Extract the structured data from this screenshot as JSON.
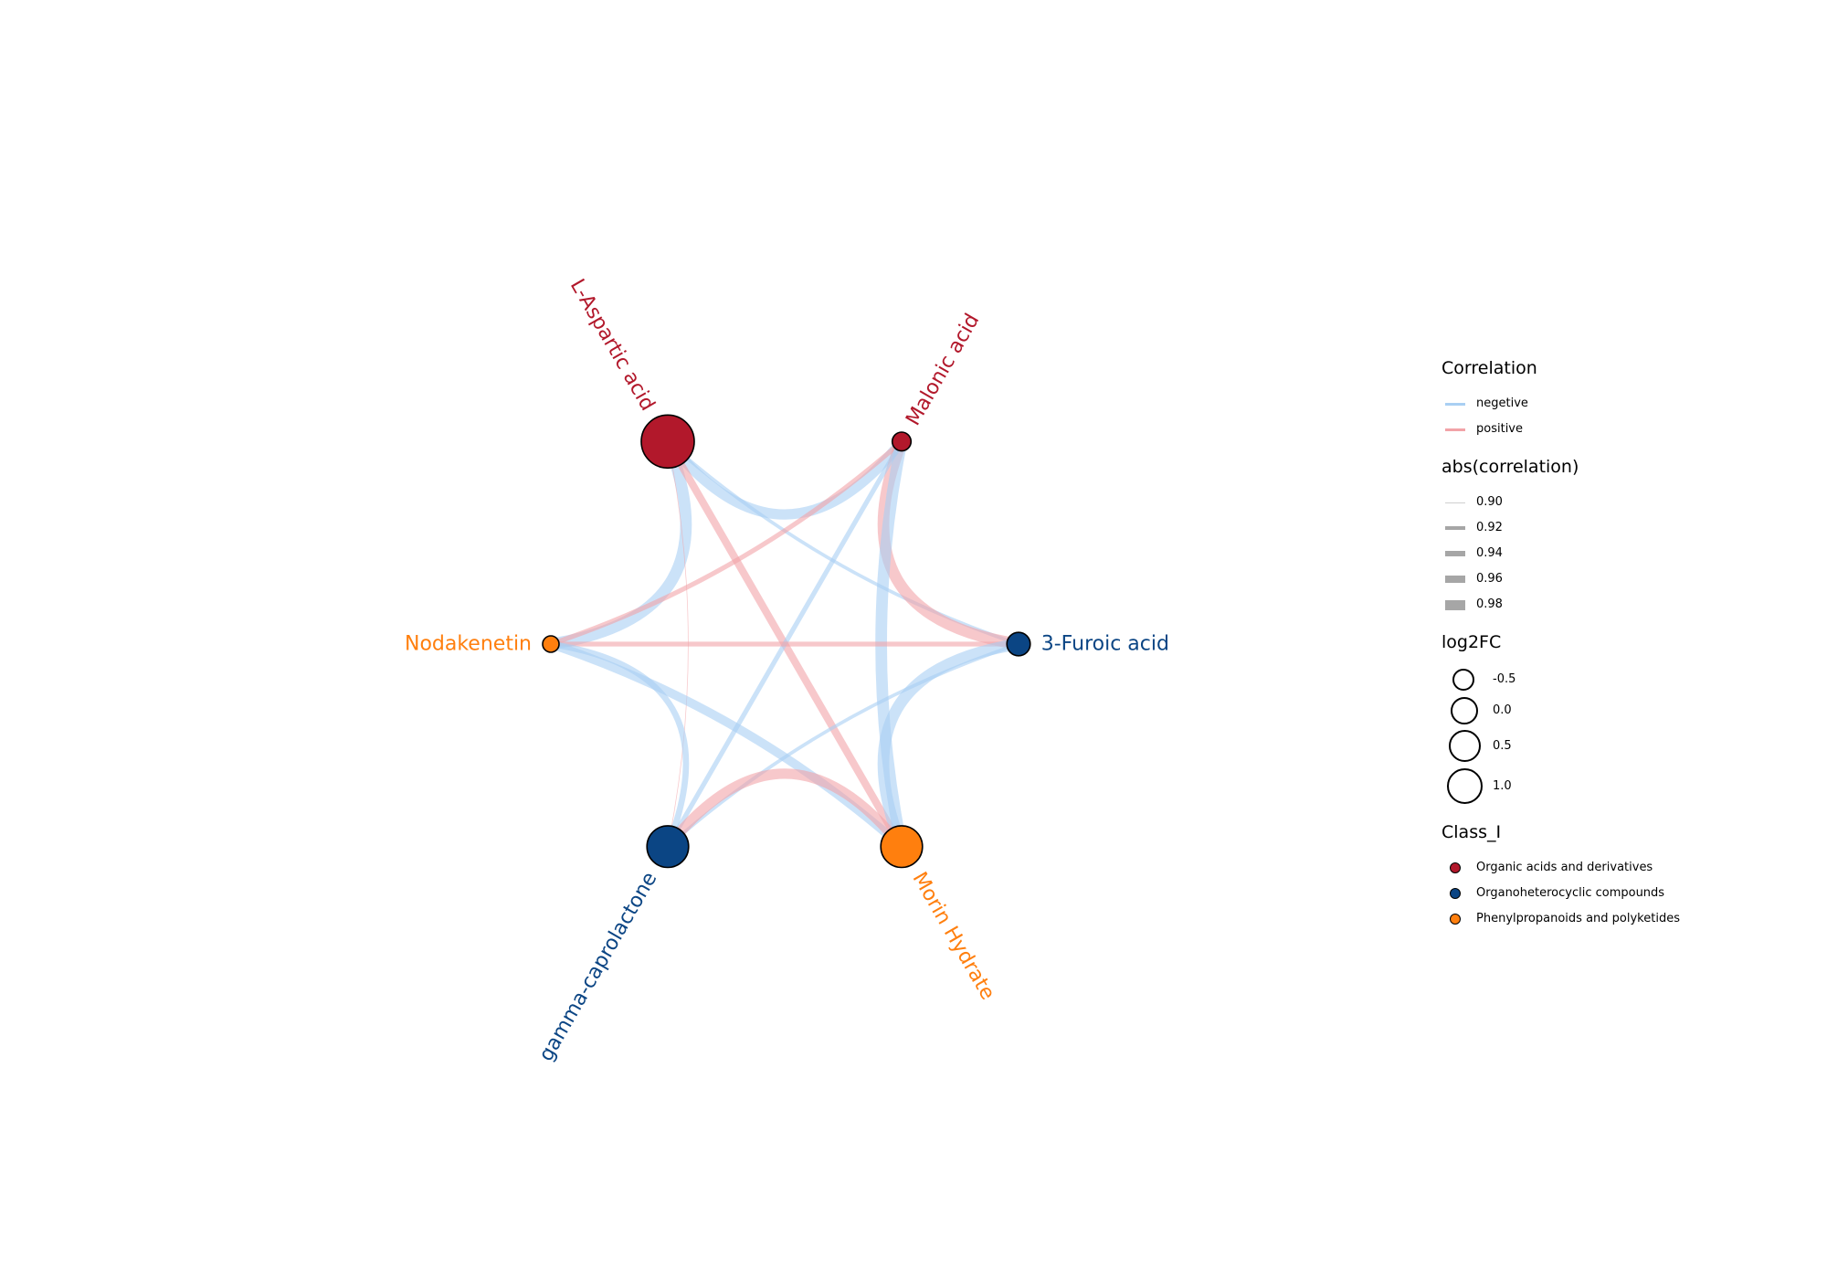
{
  "chart_data": {
    "type": "network",
    "nodes": [
      {
        "id": "L-Aspartic acid",
        "class": "Organic acids and derivatives",
        "log2FC": 1.0
      },
      {
        "id": "Malonic acid",
        "class": "Organic acids and derivatives",
        "log2FC": -0.5
      },
      {
        "id": "3-Furoic acid",
        "class": "Organoheterocyclic compounds",
        "log2FC": -0.3
      },
      {
        "id": "Morin Hydrate",
        "class": "Phenylpropanoids and polyketides",
        "log2FC": 0.5
      },
      {
        "id": "gamma-caprolactone",
        "class": "Organoheterocyclic compounds",
        "log2FC": 0.5
      },
      {
        "id": "Nodakenetin",
        "class": "Phenylpropanoids and polyketides",
        "log2FC": -0.6
      }
    ],
    "edges": [
      {
        "source": "L-Aspartic acid",
        "target": "Malonic acid",
        "correlation": -0.97
      },
      {
        "source": "L-Aspartic acid",
        "target": "Nodakenetin",
        "correlation": -0.98
      },
      {
        "source": "L-Aspartic acid",
        "target": "Morin Hydrate",
        "correlation": 0.95
      },
      {
        "source": "L-Aspartic acid",
        "target": "3-Furoic acid",
        "correlation": -0.92
      },
      {
        "source": "L-Aspartic acid",
        "target": "gamma-caprolactone",
        "correlation": 0.9
      },
      {
        "source": "Malonic acid",
        "target": "3-Furoic acid",
        "correlation": 0.98
      },
      {
        "source": "Malonic acid",
        "target": "Nodakenetin",
        "correlation": 0.93
      },
      {
        "source": "Malonic acid",
        "target": "gamma-caprolactone",
        "correlation": -0.93
      },
      {
        "source": "Malonic acid",
        "target": "Morin Hydrate",
        "correlation": -0.98
      },
      {
        "source": "Nodakenetin",
        "target": "3-Furoic acid",
        "correlation": 0.93
      },
      {
        "source": "Nodakenetin",
        "target": "gamma-caprolactone",
        "correlation": -0.94
      },
      {
        "source": "Nodakenetin",
        "target": "Morin Hydrate",
        "correlation": -0.96
      },
      {
        "source": "3-Furoic acid",
        "target": "Morin Hydrate",
        "correlation": -0.98
      },
      {
        "source": "3-Furoic acid",
        "target": "gamma-caprolactone",
        "correlation": -0.92
      },
      {
        "source": "gamma-caprolactone",
        "target": "Morin Hydrate",
        "correlation": 0.97
      }
    ]
  },
  "colors": {
    "negative": "#a9cff3",
    "positive": "#f2a3a8",
    "Organic acids and derivatives": "#b2182b",
    "Organoheterocyclic compounds": "#0b4584",
    "Phenylpropanoids and polyketides": "#ff7f0e",
    "width_key": "#a6a6a6"
  },
  "legend": {
    "correlation": {
      "title": "Correlation",
      "items": [
        {
          "label": "negetive",
          "color": "#a9cff3"
        },
        {
          "label": "positive",
          "color": "#f2a3a8"
        }
      ]
    },
    "abs": {
      "title": "abs(correlation)",
      "items": [
        {
          "label": "0.90",
          "value": 0.9
        },
        {
          "label": "0.92",
          "value": 0.92
        },
        {
          "label": "0.94",
          "value": 0.94
        },
        {
          "label": "0.96",
          "value": 0.96
        },
        {
          "label": "0.98",
          "value": 0.98
        }
      ]
    },
    "log2fc": {
      "title": "log2FC",
      "items": [
        {
          "label": "-0.5",
          "value": -0.5
        },
        {
          "label": "0.0",
          "value": 0.0
        },
        {
          "label": "0.5",
          "value": 0.5
        },
        {
          "label": "1.0",
          "value": 1.0
        }
      ]
    },
    "class": {
      "title": "Class_I",
      "items": [
        {
          "label": "Organic acids and derivatives",
          "color": "#b2182b"
        },
        {
          "label": "Organoheterocyclic compounds",
          "color": "#0b4584"
        },
        {
          "label": "Phenylpropanoids and polyketides",
          "color": "#ff7f0e"
        }
      ]
    }
  }
}
